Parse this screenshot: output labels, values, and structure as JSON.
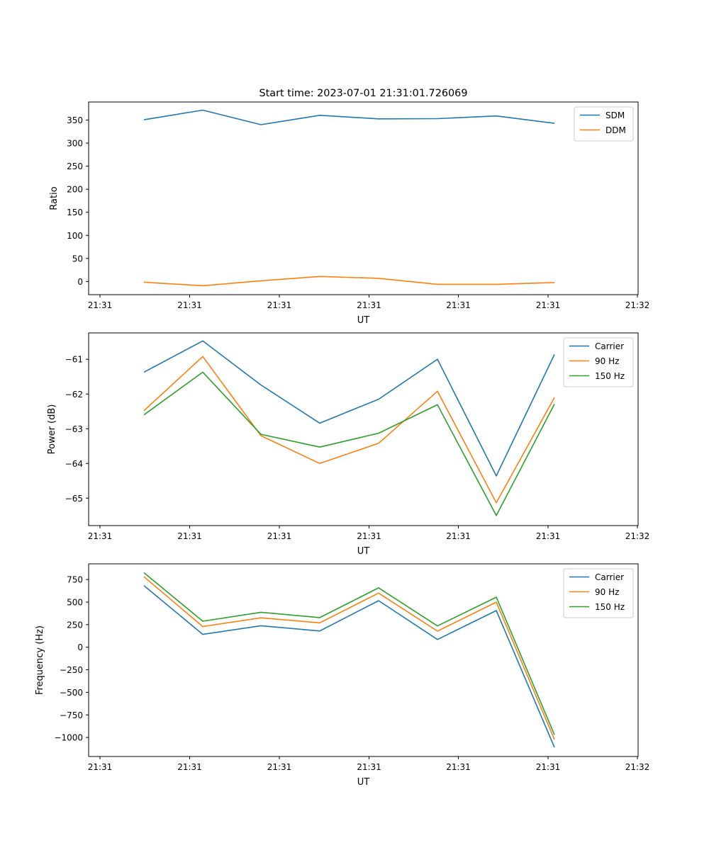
{
  "title": "Start time: 2023-07-01 21:31:01.726069",
  "chart_data": [
    {
      "type": "line",
      "xlabel": "UT",
      "ylabel": "Ratio",
      "xtick_labels": [
        "21:31",
        "21:31",
        "21:31",
        "21:31",
        "21:31",
        "21:31",
        "21:32"
      ],
      "ytick_values": [
        0,
        50,
        100,
        150,
        200,
        250,
        300,
        350
      ],
      "ytick_labels": [
        "0",
        "50",
        "100",
        "150",
        "200",
        "250",
        "300",
        "350"
      ],
      "ylim": [
        -28.6,
        389.1
      ],
      "legend_position": "top-right",
      "series": [
        {
          "name": "SDM",
          "color": "#1f77b4",
          "values": [
            350.5,
            371.4,
            340.0,
            360.2,
            352.5,
            353.0,
            358.9,
            342.9
          ]
        },
        {
          "name": "DDM",
          "color": "#ff7f0e",
          "values": [
            -1.6,
            -9.3,
            1.5,
            10.8,
            6.9,
            -6.2,
            -6.2,
            -2.4
          ]
        }
      ]
    },
    {
      "type": "line",
      "xlabel": "UT",
      "ylabel": "Power (dB)",
      "xtick_labels": [
        "21:31",
        "21:31",
        "21:31",
        "21:31",
        "21:31",
        "21:31",
        "21:32"
      ],
      "ytick_values": [
        -65,
        -64,
        -63,
        -62,
        -61
      ],
      "ytick_labels": [
        "−65",
        "−64",
        "−63",
        "−62",
        "−61"
      ],
      "ylim": [
        -65.79,
        -60.24
      ],
      "legend_position": "top-right",
      "series": [
        {
          "name": "Carrier",
          "color": "#1f77b4",
          "values": [
            -61.37,
            -60.47,
            -61.74,
            -62.84,
            -62.15,
            -61.0,
            -64.36,
            -60.86
          ]
        },
        {
          "name": "90 Hz",
          "color": "#ff7f0e",
          "values": [
            -62.48,
            -60.92,
            -63.2,
            -64.0,
            -63.42,
            -61.92,
            -65.13,
            -62.1
          ]
        },
        {
          "name": "150 Hz",
          "color": "#2ca02c",
          "values": [
            -62.6,
            -61.37,
            -63.16,
            -63.53,
            -63.13,
            -62.31,
            -65.5,
            -62.29
          ]
        }
      ]
    },
    {
      "type": "line",
      "xlabel": "UT",
      "ylabel": "Frequency (Hz)",
      "xtick_labels": [
        "21:31",
        "21:31",
        "21:31",
        "21:31",
        "21:31",
        "21:31",
        "21:32"
      ],
      "ytick_values": [
        -1000,
        -750,
        -500,
        -250,
        0,
        250,
        500,
        750
      ],
      "ytick_labels": [
        "−1000",
        "−750",
        "−500",
        "−250",
        "0",
        "250",
        "500",
        "750"
      ],
      "ylim": [
        -1211,
        924
      ],
      "legend_position": "top-right",
      "series": [
        {
          "name": "Carrier",
          "color": "#1f77b4",
          "values": [
            683,
            142,
            238,
            180,
            516,
            86,
            406,
            -1110
          ]
        },
        {
          "name": "90 Hz",
          "color": "#ff7f0e",
          "values": [
            781,
            229,
            326,
            270,
            600,
            178,
            499,
            -1022
          ]
        },
        {
          "name": "150 Hz",
          "color": "#2ca02c",
          "values": [
            826,
            288,
            387,
            328,
            658,
            236,
            554,
            -970
          ]
        }
      ]
    }
  ]
}
